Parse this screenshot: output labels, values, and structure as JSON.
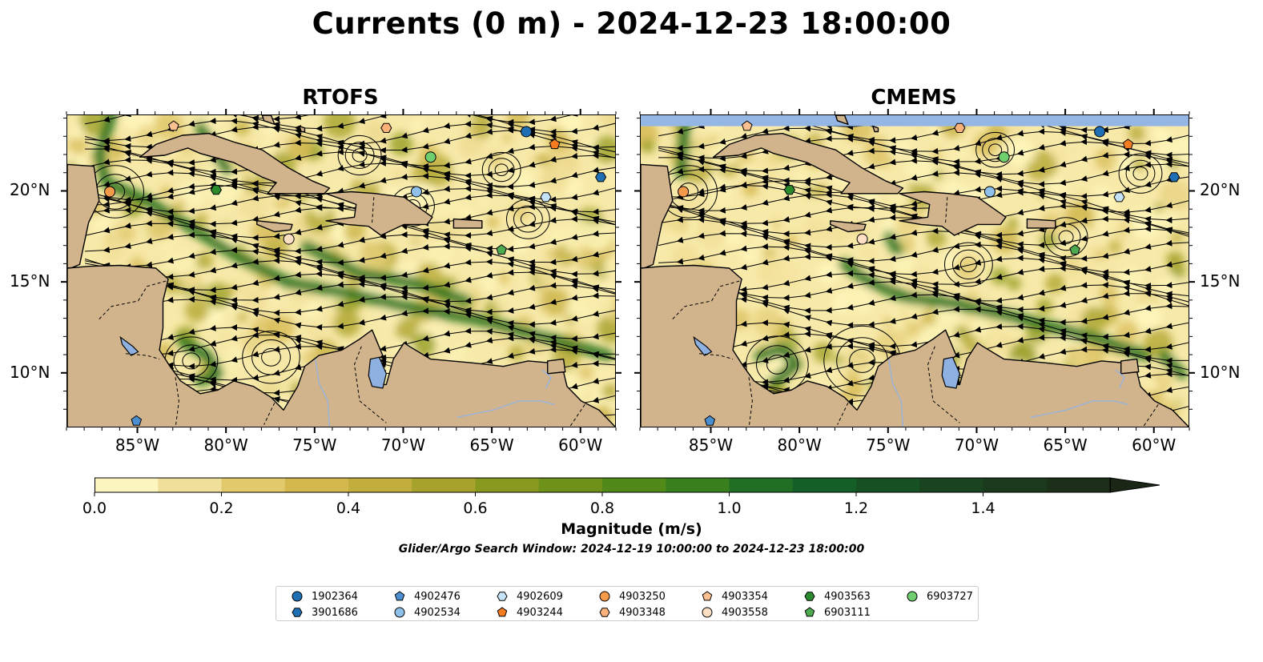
{
  "title": "Currents (0 m) - 2024-12-23 18:00:00",
  "panels": [
    {
      "name": "RTOFS"
    },
    {
      "name": "CMEMS"
    }
  ],
  "map": {
    "lon_range": [
      -89,
      -58
    ],
    "lat_range": [
      7,
      24.2
    ],
    "lon_ticks": [
      "85°W",
      "80°W",
      "75°W",
      "70°W",
      "65°W",
      "60°W"
    ],
    "lat_ticks": [
      "20°N",
      "15°N",
      "10°N"
    ],
    "colors": {
      "land": "#d2b48c",
      "lake": "#8fb1e2",
      "ocean_low": "#fff7bc",
      "ocean_high": "#1f3b1f",
      "streamline": "#000000"
    }
  },
  "colorbar": {
    "ticks": [
      "0.0",
      "0.2",
      "0.4",
      "0.6",
      "0.8",
      "1.0",
      "1.2",
      "1.4"
    ],
    "range": [
      0,
      1.6
    ],
    "colors": [
      "#fdf5c0",
      "#f0df9a",
      "#e2c96c",
      "#d4b84e",
      "#c1ae3c",
      "#a6a22c",
      "#87991e",
      "#6d9119",
      "#528a1a",
      "#3a7f1e",
      "#206f24",
      "#145f27",
      "#165124",
      "#1a441f",
      "#1b3a1d",
      "#1b2f19"
    ],
    "label": "Magnitude (m/s)",
    "extend": "max"
  },
  "window_note": "Glider/Argo Search Window: 2024-12-19 10:00:00 to 2024-12-23 18:00:00",
  "floats": [
    {
      "id": "1902364",
      "marker": "circle",
      "color": "#1f6fb5",
      "lon": -63.1,
      "lat": 23.3
    },
    {
      "id": "3901686",
      "marker": "hexagon",
      "color": "#1f6fb5",
      "lon": -58.9,
      "lat": 20.8
    },
    {
      "id": "4902476",
      "marker": "pentagon",
      "color": "#4c8fd1",
      "lon": -85.1,
      "lat": 7.4
    },
    {
      "id": "4902534",
      "marker": "circle",
      "color": "#8ec0ea",
      "lon": -69.3,
      "lat": 20.0
    },
    {
      "id": "4902609",
      "marker": "hexagon",
      "color": "#c6e2f7",
      "lon": -62.0,
      "lat": 19.7
    },
    {
      "id": "4903244",
      "marker": "pentagon",
      "color": "#f57c1f",
      "lon": -61.5,
      "lat": 22.6
    },
    {
      "id": "4903250",
      "marker": "circle",
      "color": "#f59a4a",
      "lon": -86.6,
      "lat": 20.0
    },
    {
      "id": "4903348",
      "marker": "hexagon",
      "color": "#fbb27a",
      "lon": -71.0,
      "lat": 23.5
    },
    {
      "id": "4903354",
      "marker": "pentagon",
      "color": "#fbc08f",
      "lon": -83.0,
      "lat": 23.6
    },
    {
      "id": "4903558",
      "marker": "circle",
      "color": "#fde0c3",
      "lon": -76.5,
      "lat": 17.4
    },
    {
      "id": "4903563",
      "marker": "hexagon",
      "color": "#2b8a2b",
      "lon": -80.6,
      "lat": 20.1
    },
    {
      "id": "6903111",
      "marker": "pentagon",
      "color": "#4fab4f",
      "lon": -64.5,
      "lat": 16.8
    },
    {
      "id": "6903727",
      "marker": "circle",
      "color": "#6fcf6f",
      "lon": -68.5,
      "lat": 21.9
    }
  ]
}
